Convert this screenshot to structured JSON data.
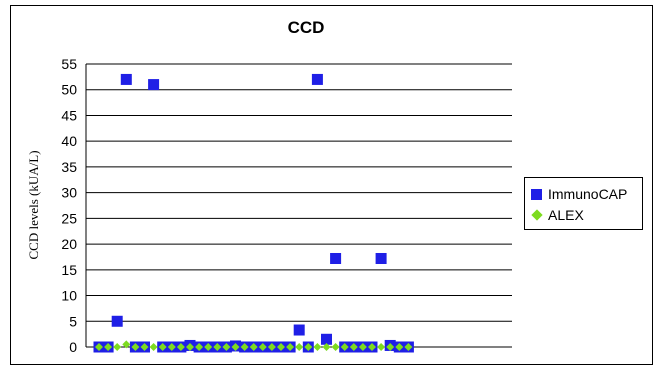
{
  "chart_data": {
    "type": "scatter",
    "title": "CCD",
    "ylabel": "CCD levels (kUA/L)",
    "xlabel": "",
    "ylim": [
      0,
      55
    ],
    "yticks": [
      0,
      5,
      10,
      15,
      20,
      25,
      30,
      35,
      40,
      45,
      50,
      55
    ],
    "grid": "horizontal",
    "legend_position": "right",
    "x": [
      1,
      2,
      3,
      4,
      5,
      6,
      7,
      8,
      9,
      10,
      11,
      12,
      13,
      14,
      15,
      16,
      17,
      18,
      19,
      20,
      21,
      22,
      23,
      24,
      25,
      26,
      27,
      28,
      29,
      30,
      31,
      32,
      33,
      34,
      35,
      36,
      37,
      38,
      39
    ],
    "series": [
      {
        "name": "ImmunoCAP",
        "color": "#1f1fe6",
        "marker": "square",
        "values": [
          0,
          0,
          5,
          52,
          0,
          0,
          51,
          0,
          0,
          0,
          0.3,
          0,
          0,
          0,
          0,
          0.2,
          0,
          0,
          0,
          0,
          0,
          0,
          3.3,
          0,
          52,
          1.5,
          17.2,
          0,
          0,
          0,
          0,
          17.2,
          0.3,
          0,
          0,
          null,
          null,
          null,
          null
        ]
      },
      {
        "name": "ALEX",
        "color": "#7ddb1f",
        "marker": "diamond",
        "values": [
          0,
          0,
          0,
          0.5,
          0,
          0,
          0,
          0,
          0,
          0,
          0,
          0,
          0,
          0,
          0,
          0,
          0,
          0,
          0,
          0,
          0,
          0,
          0,
          0,
          0,
          0,
          0,
          0,
          0,
          0,
          0,
          0,
          0,
          0,
          0,
          null,
          null,
          null,
          null
        ]
      }
    ]
  }
}
